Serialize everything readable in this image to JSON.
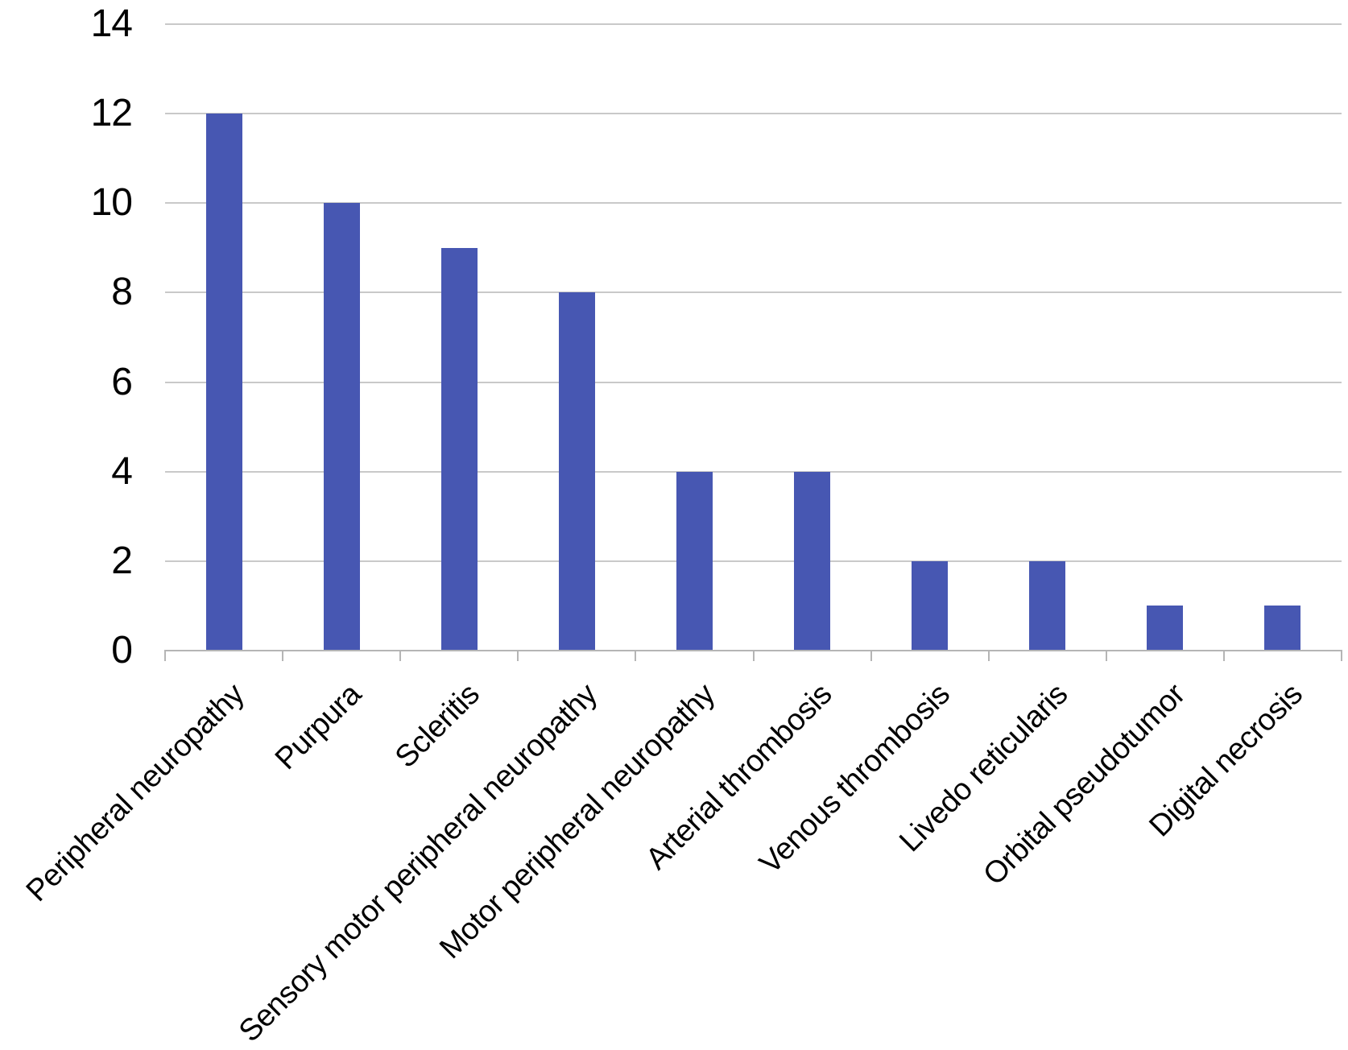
{
  "chart_data": {
    "type": "bar",
    "categories": [
      "Peripheral neuropathy",
      "Purpura",
      "Scleritis",
      "Sensory motor peripheral neuropathy",
      "Motor peripheral neuropathy",
      "Arterial thrombosis",
      "Venous thrombosis",
      "Livedo reticularis",
      "Orbital pseudotumor",
      "Digital necrosis"
    ],
    "values": [
      12,
      10,
      9,
      8,
      4,
      4,
      2,
      2,
      1,
      1
    ],
    "title": "",
    "xlabel": "",
    "ylabel": "",
    "ylim": [
      0,
      14
    ],
    "yticks": [
      0,
      2,
      4,
      6,
      8,
      10,
      12,
      14
    ],
    "grid": "horizontal",
    "legend_position": "none",
    "x_label_rotation_deg": -45,
    "colors": {
      "bar": "#4757b2",
      "gridline": "#c9c9c9",
      "axis": "#b5b5b5",
      "text": "#000000",
      "background": "#ffffff"
    }
  }
}
